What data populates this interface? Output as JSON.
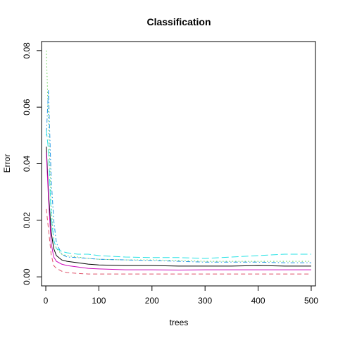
{
  "chart_data": {
    "type": "line",
    "title": "Classification",
    "xlabel": "trees",
    "ylabel": "Error",
    "xlim": [
      -8,
      508
    ],
    "ylim": [
      -0.0032,
      0.0832
    ],
    "xticks": [
      0,
      100,
      200,
      300,
      400,
      500
    ],
    "xtick_labels": [
      "0",
      "100",
      "200",
      "300",
      "400",
      "500"
    ],
    "yticks": [
      0.0,
      0.02,
      0.04,
      0.06,
      0.08
    ],
    "ytick_labels": [
      "0.00",
      "0.02",
      "0.04",
      "0.06",
      "0.08"
    ],
    "grid": false,
    "legend": "none",
    "series": [
      {
        "color": "#000000",
        "dash": "solid",
        "x": [
          1,
          5,
          10,
          15,
          20,
          30,
          40,
          60,
          80,
          100,
          150,
          200,
          250,
          300,
          350,
          400,
          450,
          500
        ],
        "y": [
          0.046,
          0.03,
          0.016,
          0.01,
          0.0075,
          0.006,
          0.0055,
          0.005,
          0.0045,
          0.0042,
          0.004,
          0.004,
          0.0038,
          0.0038,
          0.0038,
          0.004,
          0.0038,
          0.0038
        ]
      },
      {
        "color": "#df536b",
        "dash": "dashed",
        "x": [
          1,
          5,
          10,
          15,
          20,
          30,
          40,
          60,
          80,
          100,
          150,
          200,
          250,
          300,
          350,
          400,
          450,
          500
        ],
        "y": [
          0.024,
          0.017,
          0.008,
          0.004,
          0.003,
          0.002,
          0.0015,
          0.0012,
          0.001,
          0.001,
          0.001,
          0.001,
          0.001,
          0.001,
          0.001,
          0.001,
          0.001,
          0.001
        ]
      },
      {
        "color": "#61d04f",
        "dash": "dotted",
        "x": [
          1,
          5,
          10,
          15,
          20,
          30,
          40,
          60,
          80,
          100,
          150,
          200,
          250,
          300,
          350,
          400,
          450,
          500
        ],
        "y": [
          0.08,
          0.055,
          0.025,
          0.013,
          0.01,
          0.008,
          0.0075,
          0.007,
          0.0065,
          0.0062,
          0.006,
          0.006,
          0.0058,
          0.0055,
          0.0055,
          0.0055,
          0.0055,
          0.0055
        ]
      },
      {
        "color": "#2297e6",
        "dash": "dotdash",
        "x": [
          1,
          5,
          10,
          15,
          20,
          30,
          40,
          60,
          80,
          100,
          150,
          200,
          250,
          300,
          350,
          400,
          450,
          500
        ],
        "y": [
          0.05,
          0.066,
          0.035,
          0.02,
          0.012,
          0.008,
          0.007,
          0.0068,
          0.0065,
          0.0062,
          0.006,
          0.0058,
          0.0055,
          0.0052,
          0.0052,
          0.0052,
          0.005,
          0.005
        ]
      },
      {
        "color": "#28e2e5",
        "dash": "longdash",
        "x": [
          1,
          5,
          10,
          15,
          20,
          30,
          40,
          60,
          80,
          100,
          150,
          200,
          250,
          300,
          350,
          400,
          450,
          500
        ],
        "y": [
          0.052,
          0.045,
          0.022,
          0.013,
          0.01,
          0.009,
          0.0085,
          0.008,
          0.008,
          0.0075,
          0.007,
          0.0068,
          0.0068,
          0.0065,
          0.007,
          0.0075,
          0.008,
          0.008
        ]
      },
      {
        "color": "#cd0bbc",
        "dash": "solid",
        "x": [
          1,
          5,
          10,
          15,
          20,
          30,
          40,
          60,
          80,
          100,
          150,
          200,
          250,
          300,
          350,
          400,
          450,
          500
        ],
        "y": [
          0.044,
          0.028,
          0.012,
          0.007,
          0.0055,
          0.0045,
          0.004,
          0.0035,
          0.003,
          0.0028,
          0.0025,
          0.0025,
          0.0024,
          0.0025,
          0.0025,
          0.0025,
          0.0025,
          0.0025
        ]
      }
    ]
  }
}
